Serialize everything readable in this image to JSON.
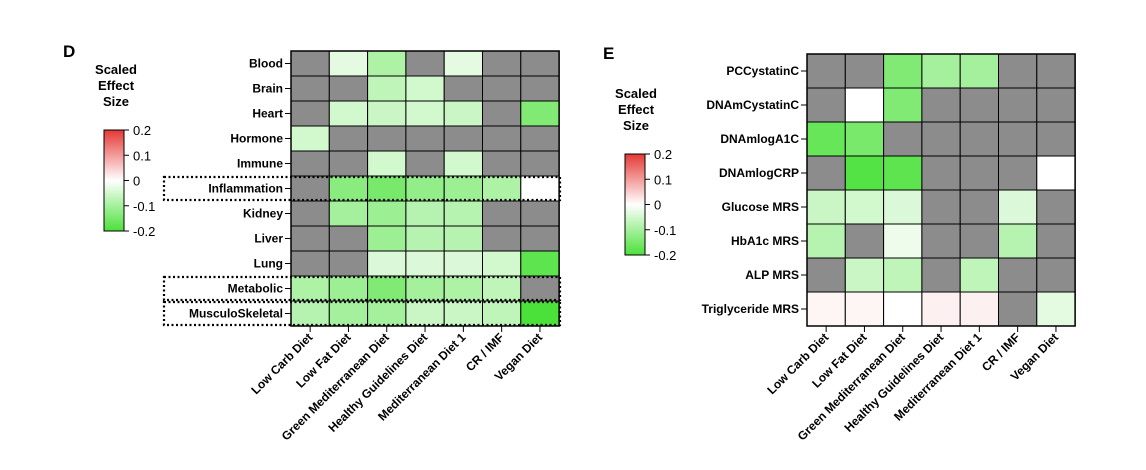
{
  "chart_data": [
    {
      "type": "heatmap",
      "panel": "D",
      "legend": {
        "title_lines": [
          "Scaled",
          "Effect",
          "Size"
        ],
        "min": -0.2,
        "max": 0.2,
        "ticks": [
          0.2,
          0.1,
          0,
          -0.1,
          -0.2
        ],
        "tick_labels": [
          "0.2",
          "0.1",
          "0",
          "-0.1",
          "-0.2"
        ],
        "colors": {
          "positive": "#e53935",
          "zero": "#ffffff",
          "negative": "#4be13a",
          "missing": "#8c8c8c"
        }
      },
      "rows": [
        "Blood",
        "Brain",
        "Heart",
        "Hormone",
        "Immune",
        "Inflammation",
        "Kidney",
        "Liver",
        "Lung",
        "Metabolic",
        "MusculoSkeletal"
      ],
      "columns": [
        "Low Carb Diet",
        "Low Fat Diet",
        "Green Mediterranean Diet",
        "Healthy Guidelines Diet",
        "Mediterranean Diet 1",
        "CR / IMF",
        "Vegan Diet"
      ],
      "highlighted_rows": [
        "Inflammation",
        "Metabolic",
        "MusculoSkeletal"
      ],
      "values": [
        [
          null,
          -0.03,
          -0.09,
          null,
          -0.03,
          null,
          null
        ],
        [
          null,
          null,
          -0.07,
          -0.05,
          null,
          null,
          null
        ],
        [
          null,
          -0.05,
          -0.06,
          -0.05,
          -0.06,
          null,
          -0.14
        ],
        [
          -0.05,
          null,
          null,
          null,
          null,
          null,
          null
        ],
        [
          null,
          null,
          -0.05,
          null,
          -0.05,
          null,
          null
        ],
        [
          null,
          -0.13,
          -0.15,
          -0.12,
          -0.11,
          -0.09,
          0
        ],
        [
          null,
          -0.1,
          -0.11,
          -0.08,
          -0.08,
          null,
          null
        ],
        [
          null,
          null,
          -0.11,
          -0.08,
          -0.08,
          null,
          null
        ],
        [
          null,
          null,
          -0.04,
          -0.04,
          -0.04,
          -0.05,
          -0.18
        ],
        [
          -0.09,
          -0.11,
          -0.14,
          -0.1,
          -0.09,
          -0.07,
          null
        ],
        [
          -0.08,
          -0.1,
          -0.1,
          -0.06,
          -0.06,
          -0.07,
          -0.2
        ]
      ]
    },
    {
      "type": "heatmap",
      "panel": "E",
      "legend": {
        "title_lines": [
          "Scaled",
          "Effect",
          "Size"
        ],
        "min": -0.2,
        "max": 0.2,
        "ticks": [
          0.2,
          0.1,
          0,
          -0.1,
          -0.2
        ],
        "tick_labels": [
          "0.2",
          "0.1",
          "0",
          "-0.1",
          "-0.2"
        ],
        "colors": {
          "positive": "#e53935",
          "zero": "#ffffff",
          "negative": "#4be13a",
          "missing": "#8c8c8c"
        }
      },
      "rows": [
        "PCCystatinC",
        "DNAmCystatinC",
        "DNAmlogA1C",
        "DNAmlogCRP",
        "Glucose MRS",
        "HbA1c MRS",
        "ALP MRS",
        "Triglyceride MRS"
      ],
      "columns": [
        "Low Carb Diet",
        "Low Fat Diet",
        "Green Mediterranean Diet",
        "Healthy Guidelines Diet",
        "Mediterranean Diet 1",
        "CR / IMF",
        "Vegan Diet"
      ],
      "values": [
        [
          null,
          null,
          -0.14,
          -0.1,
          -0.1,
          null,
          null
        ],
        [
          null,
          0,
          -0.14,
          null,
          null,
          null,
          null
        ],
        [
          -0.17,
          -0.15,
          null,
          null,
          null,
          null,
          null
        ],
        [
          null,
          -0.19,
          -0.18,
          null,
          null,
          null,
          0
        ],
        [
          -0.06,
          -0.05,
          -0.04,
          null,
          null,
          -0.04,
          null
        ],
        [
          -0.08,
          null,
          -0.02,
          null,
          null,
          -0.08,
          null
        ],
        [
          null,
          -0.06,
          -0.07,
          null,
          -0.07,
          null,
          null
        ],
        [
          0.01,
          0.01,
          0,
          0.015,
          0.015,
          null,
          -0.03
        ]
      ]
    }
  ]
}
